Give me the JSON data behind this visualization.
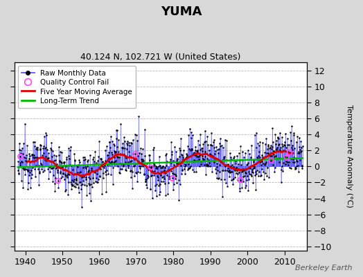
{
  "title": "YUMA",
  "subtitle": "40.124 N, 102.721 W (United States)",
  "ylabel": "Temperature Anomaly (°C)",
  "watermark": "Berkeley Earth",
  "xlim": [
    1937,
    2016
  ],
  "ylim": [
    -10.5,
    13
  ],
  "yticks": [
    -10,
    -8,
    -6,
    -4,
    -2,
    0,
    2,
    4,
    6,
    8,
    10,
    12
  ],
  "xticks": [
    1940,
    1950,
    1960,
    1970,
    1980,
    1990,
    2000,
    2010
  ],
  "fig_bg_color": "#d8d8d8",
  "plot_bg_color": "#ffffff",
  "line_color": "#4444ff",
  "ma_color": "#dd0000",
  "trend_color": "#00bb00",
  "qc_color": "#ff44ff",
  "data_color": "#000000",
  "grid_color": "#bbbbbb",
  "seed": 12345,
  "start_year": 1938.0,
  "end_year": 2014.9
}
